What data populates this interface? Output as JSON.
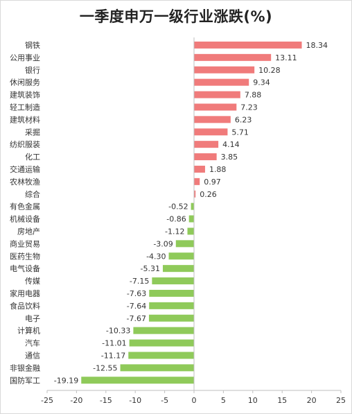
{
  "chart_data": {
    "type": "bar",
    "orientation": "horizontal",
    "title": "一季度申万一级行业涨跌(%)",
    "categories": [
      "钢铁",
      "公用事业",
      "银行",
      "休闲服务",
      "建筑装饰",
      "轻工制造",
      "建筑材料",
      "采掘",
      "纺织服装",
      "化工",
      "交通运输",
      "农林牧渔",
      "综合",
      "有色金属",
      "机械设备",
      "房地产",
      "商业贸易",
      "医药生物",
      "电气设备",
      "传媒",
      "家用电器",
      "食品饮料",
      "电子",
      "计算机",
      "汽车",
      "通信",
      "非银金融",
      "国防军工"
    ],
    "values": [
      18.34,
      13.11,
      10.28,
      9.34,
      7.88,
      7.23,
      6.23,
      5.71,
      4.14,
      3.85,
      1.88,
      0.97,
      0.26,
      -0.52,
      -0.86,
      -1.12,
      -3.09,
      -4.3,
      -5.31,
      -7.15,
      -7.63,
      -7.64,
      -7.67,
      -10.33,
      -11.01,
      -11.17,
      -12.55,
      -19.19
    ],
    "value_labels": [
      "18.34",
      "13.11",
      "10.28",
      "9.34",
      "7.88",
      "7.23",
      "6.23",
      "5.71",
      "4.14",
      "3.85",
      "1.88",
      "0.97",
      "0.26",
      "-0.52",
      "-0.86",
      "-1.12",
      "-3.09",
      "-4.30",
      "-5.31",
      "-7.15",
      "-7.63",
      "-7.64",
      "-7.67",
      "-10.33",
      "-11.01",
      "-11.17",
      "-12.55",
      "-19.19"
    ],
    "xlim": [
      -25,
      25
    ],
    "xticks": [
      -25,
      -20,
      -15,
      -10,
      -5,
      0,
      5,
      10,
      15,
      20,
      25
    ],
    "xtick_labels": [
      "-25",
      "-20",
      "-15",
      "-10",
      "-5",
      "0",
      "5",
      "10",
      "15",
      "20",
      "25"
    ],
    "positive_color": "#f07b7b",
    "negative_color": "#8fca5a",
    "grid": false,
    "legend": "none"
  }
}
